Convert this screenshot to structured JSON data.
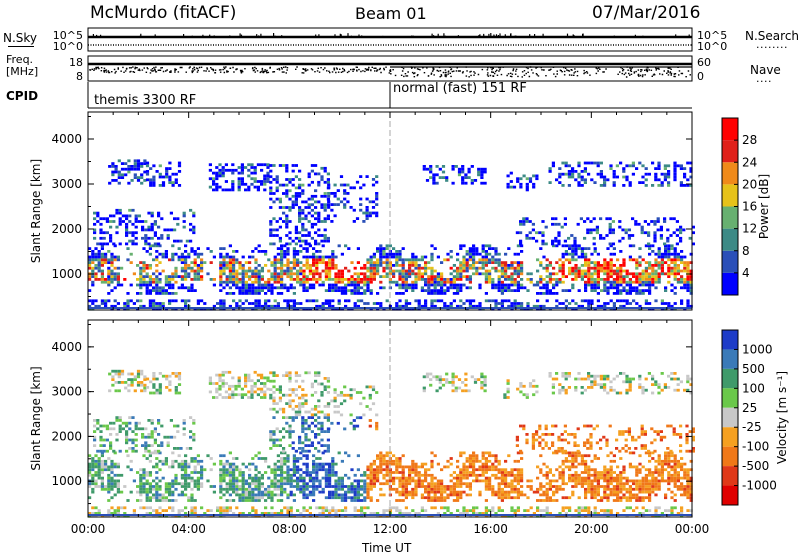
{
  "header": {
    "station": "McMurdo (fitACF)",
    "beam": "Beam 01",
    "date": "07/Mar/2016"
  },
  "noise_panel": {
    "left_label": "N.Sky",
    "left_ticks": [
      "10^5",
      "10^0"
    ],
    "right_ticks": [
      "10^5",
      "10^0"
    ],
    "right_label": "N.Search",
    "right_dots": "........"
  },
  "freq_panel": {
    "label_line1": "Freq.",
    "label_line2": "[MHz]",
    "left_ticks": [
      "18",
      "8"
    ],
    "right_ticks": [
      "60",
      "0"
    ],
    "right_label": "Nave",
    "right_dots": "...."
  },
  "cpid": {
    "label": "CPID",
    "segments": [
      {
        "text": "themis 3300 RF",
        "start_hour": 0,
        "end_hour": 12
      },
      {
        "text": "normal (fast) 151 RF",
        "start_hour": 12,
        "end_hour": 24
      }
    ]
  },
  "chart_data": [
    {
      "type": "heatmap",
      "name": "power",
      "ylabel": "Slant Range [km]",
      "xlim": [
        0,
        24
      ],
      "ylim": [
        200,
        4600
      ],
      "yticks": [
        "1000",
        "2000",
        "3000",
        "4000"
      ],
      "colorbar_label": "Power [dB]",
      "colorbar_ticks": [
        "4",
        "8",
        "12",
        "16",
        "20",
        "24",
        "28"
      ],
      "colorbar_range": [
        0,
        32
      ],
      "colors": [
        "#0000ff",
        "#2a4fb8",
        "#3c8a86",
        "#67b070",
        "#e6c21a",
        "#f08a1a",
        "#e0201a",
        "#ff0000"
      ]
    },
    {
      "type": "heatmap",
      "name": "velocity",
      "ylabel": "Slant Range [km]",
      "xlabel": "Time UT",
      "xlim": [
        0,
        24
      ],
      "ylim": [
        200,
        4600
      ],
      "yticks": [
        "1000",
        "2000",
        "3000",
        "4000"
      ],
      "xticks": [
        "00:00",
        "04:00",
        "08:00",
        "12:00",
        "16:00",
        "20:00",
        "00:00"
      ],
      "colorbar_label": "Velocity [m s⁻¹]",
      "colorbar_ticks": [
        "1000",
        "500",
        "100",
        "25",
        "-25",
        "-100",
        "-500",
        "-1000"
      ],
      "colors": [
        "#1e3cc8",
        "#3a7ab8",
        "#3f9a6a",
        "#6ac84a",
        "#c8c8c8",
        "#f5a020",
        "#f07818",
        "#e03818",
        "#e00000"
      ]
    }
  ]
}
